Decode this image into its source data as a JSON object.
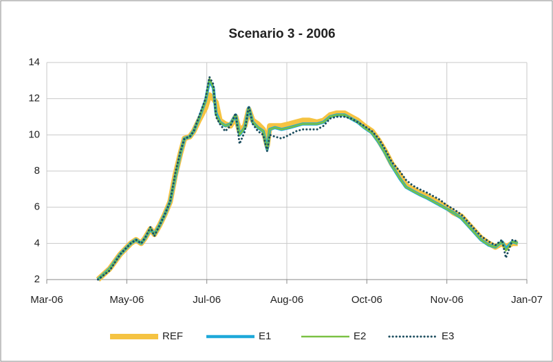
{
  "chart_data": {
    "type": "line",
    "title": "Scenario 3 - 2006",
    "x": [
      38816,
      38825,
      38833,
      38841,
      38845,
      38849,
      38852,
      38856,
      38859,
      38863,
      38867,
      38871,
      38875,
      38879,
      38882,
      38886,
      38889,
      38893,
      38898,
      38901,
      38904,
      38906,
      38909,
      38913,
      38917,
      38921,
      38924,
      38928,
      38931,
      38934,
      38938,
      38942,
      38945,
      38947,
      38951,
      38956,
      38962,
      38967,
      38972,
      38977,
      38983,
      38988,
      38993,
      38998,
      39004,
      39009,
      39014,
      39019,
      39025,
      39030,
      39035,
      39040,
      39046,
      39051,
      39056,
      39061,
      39067,
      39072,
      39077,
      39082,
      39087,
      39093,
      39098,
      39103,
      39108,
      39114,
      39119,
      39124,
      39127,
      39132,
      39136
    ],
    "series": [
      {
        "name": "REF",
        "color": "#f5c342",
        "width": 8,
        "dash": false,
        "values": [
          2.0,
          2.6,
          3.4,
          4.0,
          4.2,
          4.0,
          4.3,
          4.8,
          4.5,
          5.0,
          5.6,
          6.3,
          7.8,
          9.0,
          9.8,
          9.9,
          10.2,
          10.8,
          11.5,
          12.2,
          12.0,
          11.8,
          10.8,
          10.6,
          10.5,
          11.0,
          10.2,
          10.5,
          11.4,
          10.8,
          10.6,
          10.3,
          9.4,
          10.5,
          10.5,
          10.5,
          10.6,
          10.7,
          10.8,
          10.8,
          10.7,
          10.8,
          11.1,
          11.2,
          11.2,
          11.0,
          10.8,
          10.5,
          10.2,
          9.7,
          9.1,
          8.4,
          7.8,
          7.2,
          7.0,
          6.8,
          6.6,
          6.4,
          6.2,
          6.0,
          5.7,
          5.5,
          5.1,
          4.7,
          4.3,
          4.0,
          3.8,
          4.0,
          3.8,
          4.0,
          4.0
        ]
      },
      {
        "name": "E1",
        "color": "#1fa9d9",
        "width": 4.5,
        "dash": false,
        "values": [
          2.0,
          2.6,
          3.4,
          4.0,
          4.2,
          4.0,
          4.3,
          4.8,
          4.5,
          5.0,
          5.6,
          6.3,
          7.7,
          9.0,
          9.8,
          9.9,
          10.2,
          10.9,
          11.9,
          13.0,
          12.6,
          11.2,
          10.7,
          10.5,
          10.6,
          11.1,
          10.0,
          10.4,
          11.5,
          10.7,
          10.4,
          10.2,
          9.2,
          10.3,
          10.4,
          10.3,
          10.4,
          10.5,
          10.6,
          10.6,
          10.6,
          10.7,
          11.0,
          11.1,
          11.1,
          10.9,
          10.7,
          10.4,
          10.1,
          9.6,
          9.0,
          8.3,
          7.6,
          7.1,
          6.9,
          6.7,
          6.5,
          6.3,
          6.1,
          5.9,
          5.7,
          5.4,
          5.0,
          4.6,
          4.2,
          3.9,
          3.8,
          4.1,
          3.7,
          4.1,
          4.0
        ]
      },
      {
        "name": "E2",
        "color": "#7ac143",
        "width": 2.5,
        "dash": false,
        "values": [
          2.0,
          2.6,
          3.4,
          4.0,
          4.2,
          4.0,
          4.3,
          4.8,
          4.5,
          5.0,
          5.6,
          6.3,
          7.7,
          9.0,
          9.8,
          9.9,
          10.2,
          10.9,
          11.9,
          13.1,
          12.6,
          11.1,
          10.7,
          10.5,
          10.6,
          11.1,
          10.0,
          10.4,
          11.5,
          10.7,
          10.4,
          10.2,
          9.2,
          10.3,
          10.4,
          10.3,
          10.4,
          10.5,
          10.6,
          10.6,
          10.6,
          10.7,
          11.0,
          11.1,
          11.1,
          10.9,
          10.7,
          10.4,
          10.1,
          9.6,
          9.0,
          8.3,
          7.6,
          7.1,
          6.9,
          6.7,
          6.5,
          6.3,
          6.1,
          5.9,
          5.7,
          5.4,
          5.0,
          4.6,
          4.2,
          3.9,
          3.8,
          4.1,
          3.6,
          4.1,
          4.0
        ]
      },
      {
        "name": "E3",
        "color": "#1d4e5f",
        "width": 3,
        "dash": true,
        "values": [
          2.0,
          2.5,
          3.4,
          4.0,
          4.2,
          4.0,
          4.3,
          4.9,
          4.4,
          5.0,
          5.6,
          6.3,
          7.9,
          9.1,
          9.8,
          9.9,
          10.2,
          11.0,
          12.0,
          13.2,
          12.8,
          11.0,
          10.6,
          10.2,
          10.5,
          11.2,
          9.5,
          10.2,
          11.6,
          10.6,
          10.2,
          10.0,
          9.1,
          10.0,
          9.9,
          9.8,
          10.0,
          10.2,
          10.3,
          10.3,
          10.3,
          10.5,
          10.9,
          11.0,
          11.0,
          10.9,
          10.7,
          10.5,
          10.2,
          9.8,
          9.2,
          8.5,
          8.0,
          7.5,
          7.2,
          7.0,
          6.8,
          6.6,
          6.4,
          6.1,
          5.9,
          5.6,
          5.2,
          4.8,
          4.4,
          4.1,
          3.9,
          4.2,
          3.2,
          4.2,
          4.1
        ]
      }
    ],
    "xlim": [
      38777,
      39143
    ],
    "xticks": [
      {
        "value": 38777,
        "label": "Mar-06"
      },
      {
        "value": 38838,
        "label": "May-06"
      },
      {
        "value": 38899,
        "label": "Jul-06"
      },
      {
        "value": 38960,
        "label": "Aug-06"
      },
      {
        "value": 39021,
        "label": "Oct-06"
      },
      {
        "value": 39082,
        "label": "Nov-06"
      },
      {
        "value": 39143,
        "label": "Jan-07"
      }
    ],
    "ylim": [
      2,
      14
    ],
    "yticks": [
      2,
      4,
      6,
      8,
      10,
      12,
      14
    ],
    "grid": true,
    "legend": "bottom"
  }
}
